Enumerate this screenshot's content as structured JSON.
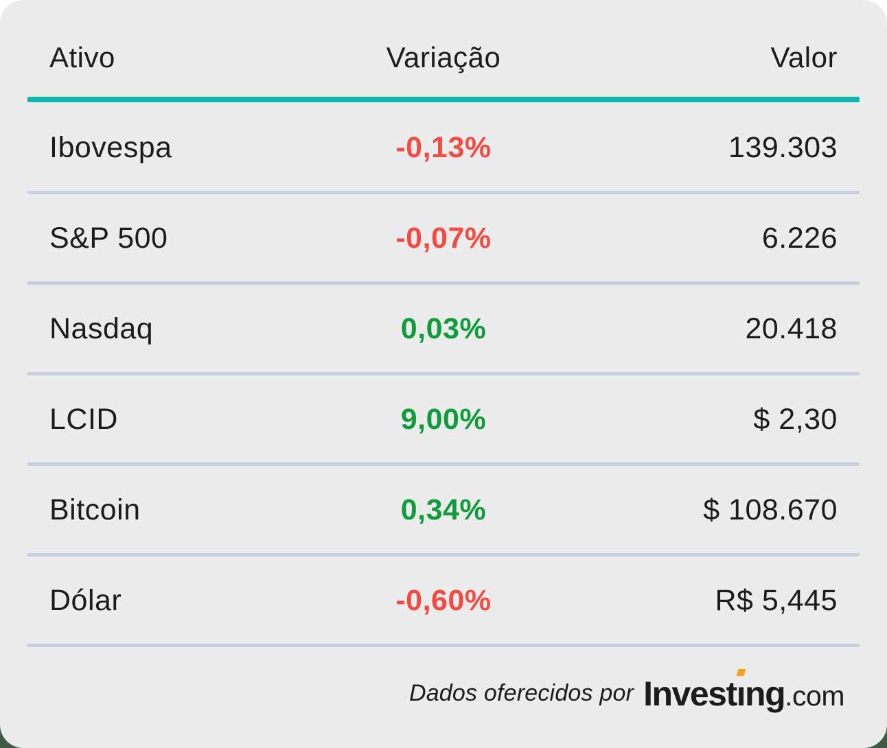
{
  "table": {
    "headers": {
      "asset": "Ativo",
      "variation": "Variação",
      "value": "Valor"
    },
    "rows": [
      {
        "asset": "Ibovespa",
        "variation": "-0,13%",
        "value": "139.303",
        "direction": "down"
      },
      {
        "asset": "S&P 500",
        "variation": "-0,07%",
        "value": "6.226",
        "direction": "down"
      },
      {
        "asset": "Nasdaq",
        "variation": "0,03%",
        "value": "20.418",
        "direction": "up"
      },
      {
        "asset": "LCID",
        "variation": "9,00%",
        "value": "$ 2,30",
        "direction": "up"
      },
      {
        "asset": "Bitcoin",
        "variation": "0,34%",
        "value": "$ 108.670",
        "direction": "up"
      },
      {
        "asset": "Dólar",
        "variation": "-0,60%",
        "value": "R$ 5,445",
        "direction": "down"
      }
    ]
  },
  "footer": {
    "attribution": "Dados oferecidos por",
    "logo": {
      "part1": "Invest",
      "dotless_i": "ı",
      "part2": "ng",
      "suffix": ".com"
    }
  },
  "colors": {
    "positive": "#119C3C",
    "negative": "#F04B45",
    "accent-teal": "#10B5AC",
    "divider": "#C8CFDF",
    "card-bg": "#ECECEC",
    "text": "#1C1C1C",
    "logo-orange": "#F7A21A",
    "backdrop-green": "#3F5B45"
  }
}
